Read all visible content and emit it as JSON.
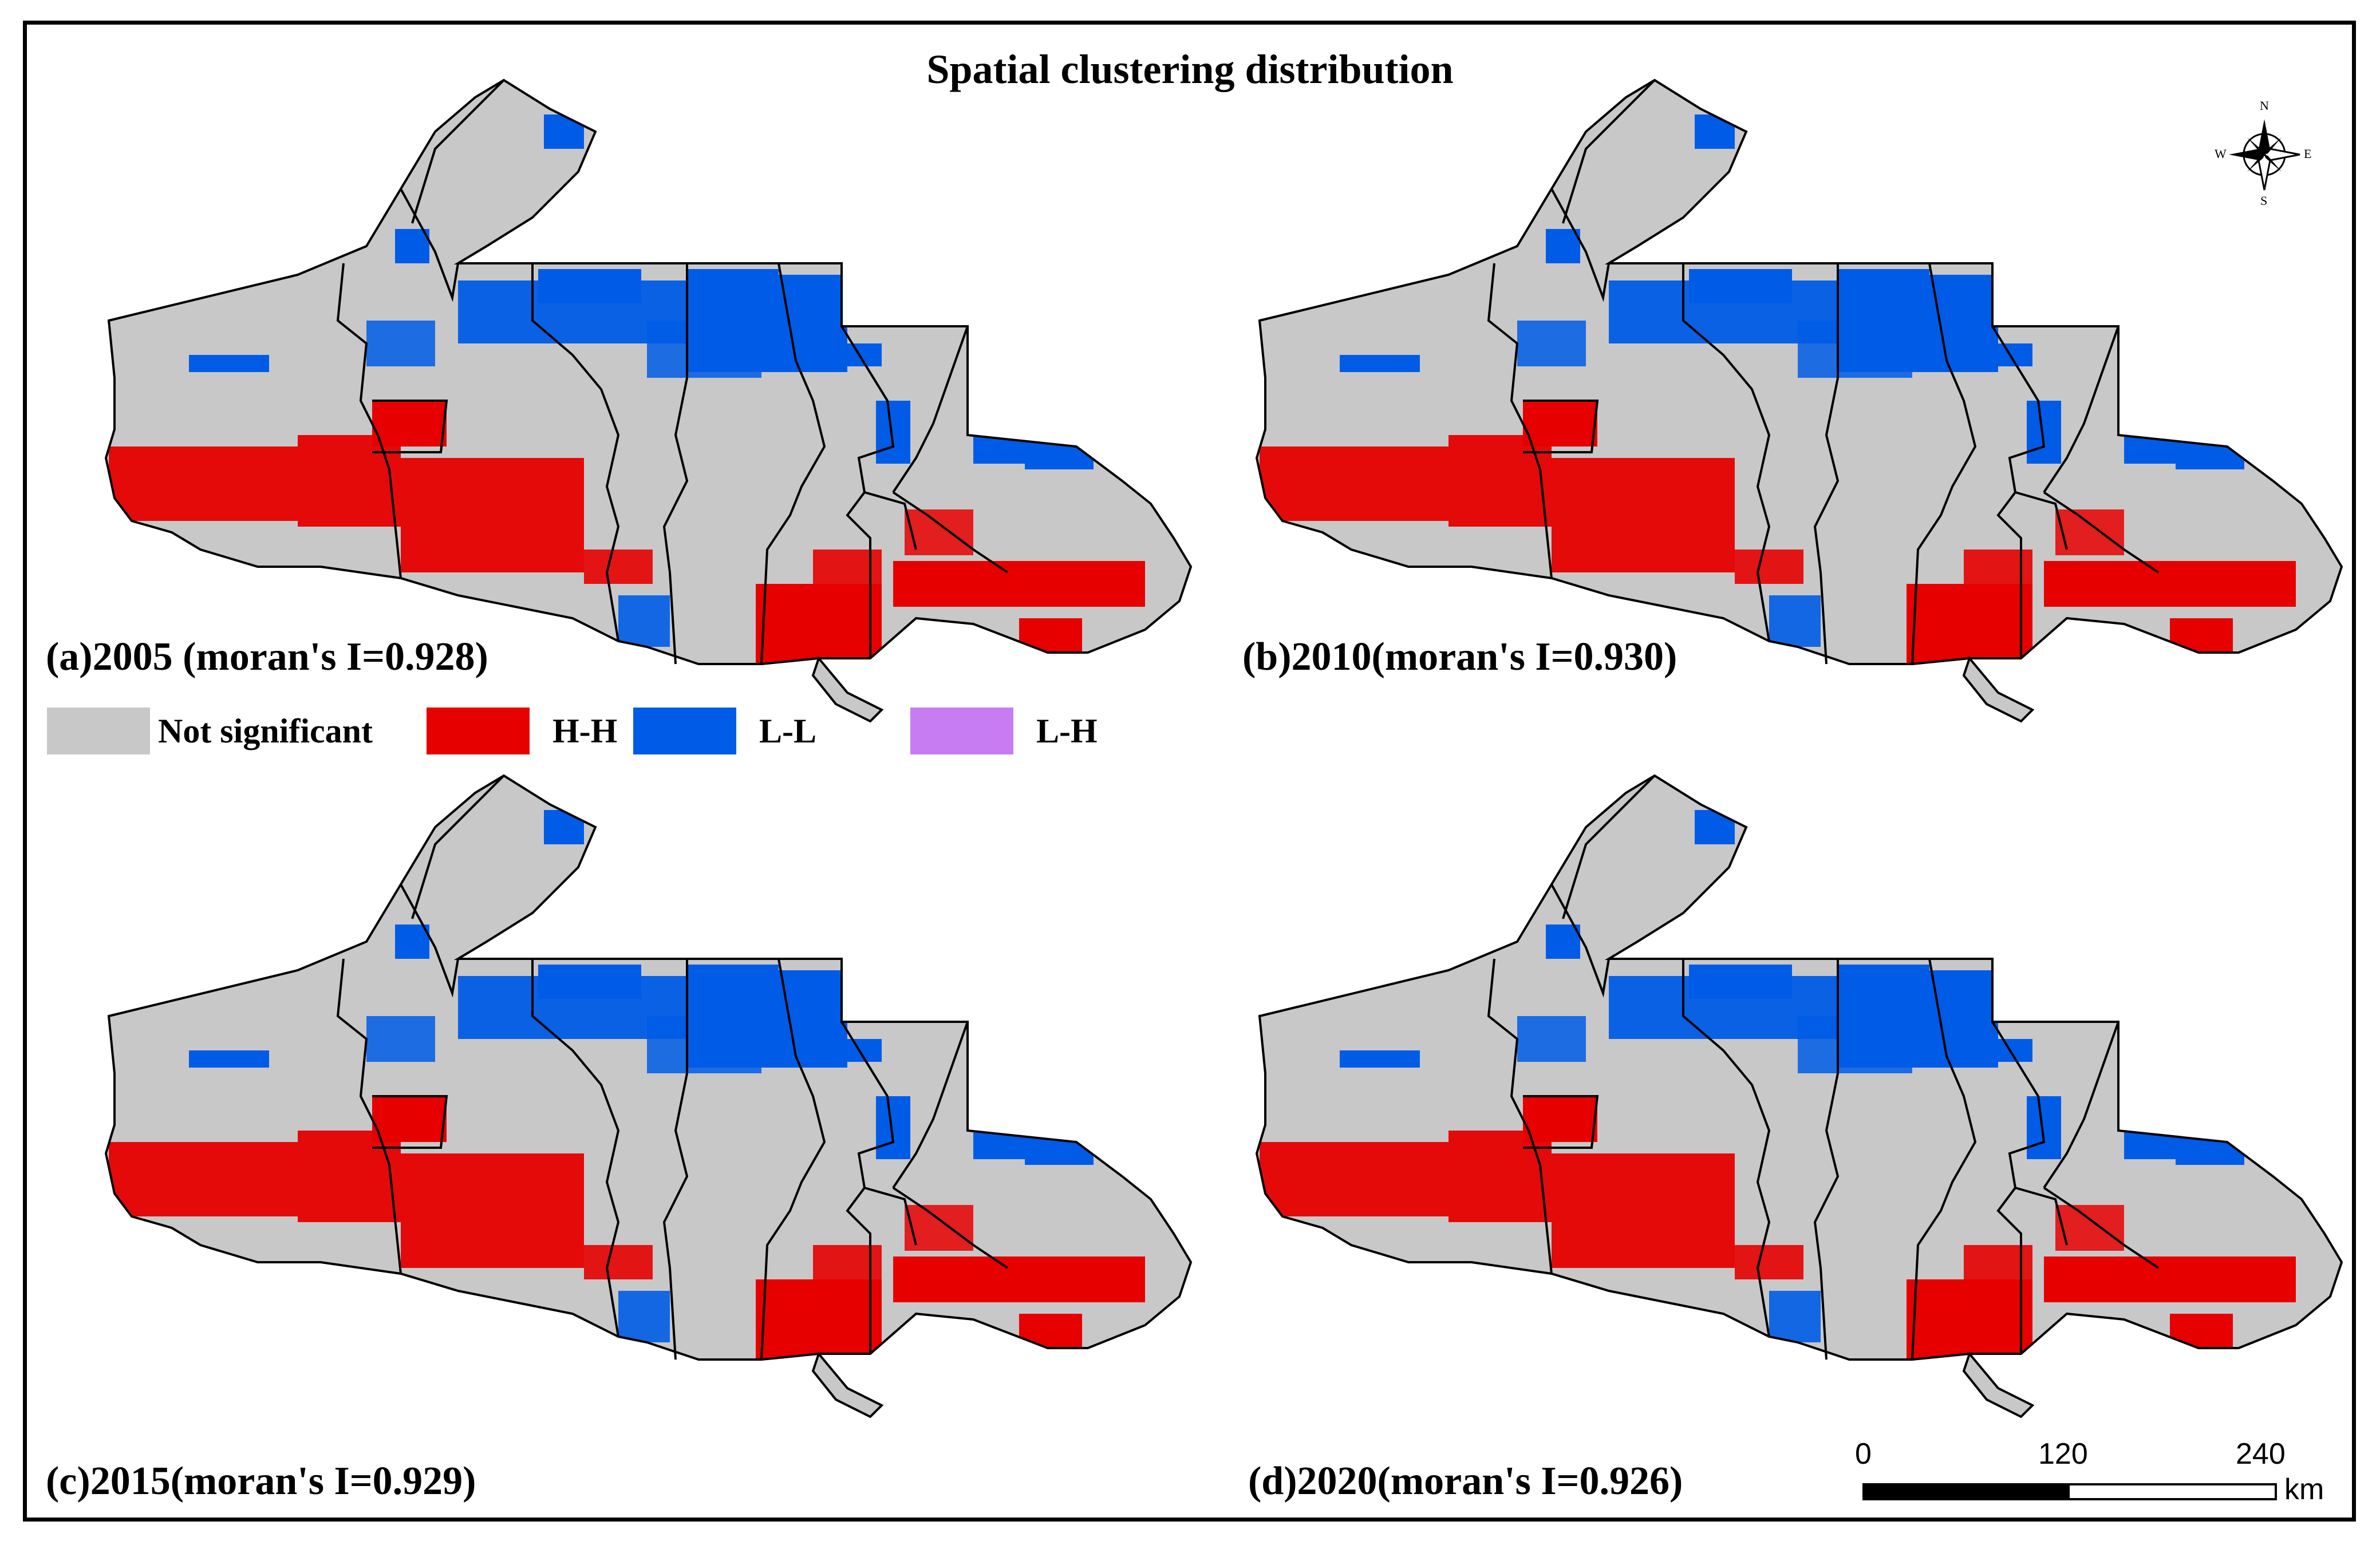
{
  "title": "Spatial clustering distribution",
  "panels": [
    {
      "id": "a",
      "label": "(a)2005 (moran's I=0.928)"
    },
    {
      "id": "b",
      "label": "(b)2010(moran's I=0.930)"
    },
    {
      "id": "c",
      "label": "(c)2015(moran's I=0.929)"
    },
    {
      "id": "d",
      "label": "(d)2020(moran's I=0.926)"
    }
  ],
  "legend": [
    {
      "label": "Not significant",
      "color": "#c8c8c8"
    },
    {
      "label": "H-H",
      "color": "#e60000"
    },
    {
      "label": "L-L",
      "color": "#005ce6"
    },
    {
      "label": "L-H",
      "color": "#c77cf2"
    }
  ],
  "colors": {
    "not_significant": "#c8c8c8",
    "high_high": "#e60000",
    "low_low": "#005ce6",
    "low_high": "#c77cf2",
    "boundary": "#000000"
  },
  "compass": {
    "icon": "compass-rose-icon",
    "n": "N",
    "s": "S",
    "e": "E",
    "w": "W"
  },
  "scale_bar": {
    "ticks": [
      "0",
      "120",
      "240"
    ],
    "unit": "km"
  }
}
